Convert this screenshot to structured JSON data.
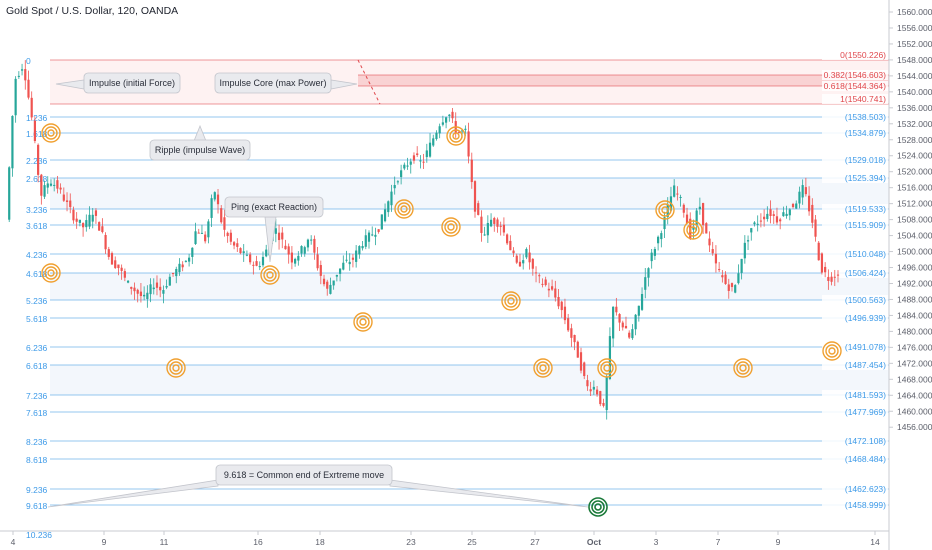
{
  "header": {
    "title": "Gold Spot / U.S. Dollar, 120, OANDA"
  },
  "price_axis": {
    "ticks": [
      "1560.000",
      "1556.000",
      "1552.000",
      "1548.000",
      "1544.000",
      "1540.000",
      "1536.000",
      "1532.000",
      "1528.000",
      "1524.000",
      "1520.000",
      "1516.000",
      "1512.000",
      "1508.000",
      "1504.000",
      "1500.000",
      "1496.000",
      "1492.000",
      "1488.000",
      "1484.000",
      "1480.000",
      "1476.000",
      "1472.000",
      "1468.000",
      "1464.000",
      "1460.000",
      "1456.000"
    ]
  },
  "date_axis": {
    "ticks": [
      "4",
      "9",
      "11",
      "16",
      "18",
      "23",
      "25",
      "27",
      "Oct",
      "3",
      "7",
      "9",
      "14"
    ]
  },
  "fib_levels": [
    {
      "left": "0",
      "right": "0(1550.226)",
      "red": true
    },
    {
      "left": "",
      "right": "0.382(1546.603)",
      "red": true
    },
    {
      "left": "",
      "right": "0.618(1544.364)",
      "red": true
    },
    {
      "left": "",
      "right": "1(1540.741)",
      "red": true
    },
    {
      "left": "1.236",
      "right": "(1538.503)",
      "red": false
    },
    {
      "left": "1.618",
      "right": "(1534.879)",
      "red": false
    },
    {
      "left": "2.236",
      "right": "(1529.018)",
      "red": false
    },
    {
      "left": "2.618",
      "right": "(1525.394)",
      "red": false
    },
    {
      "left": "3.236",
      "right": "(1519.533)",
      "red": false
    },
    {
      "left": "3.618",
      "right": "(1515.909)",
      "red": false
    },
    {
      "left": "4.236",
      "right": "(1510.048)",
      "red": false
    },
    {
      "left": "4.618",
      "right": "(1506.424)",
      "red": false
    },
    {
      "left": "5.236",
      "right": "(1500.563)",
      "red": false
    },
    {
      "left": "5.618",
      "right": "(1496.939)",
      "red": false
    },
    {
      "left": "6.236",
      "right": "(1491.078)",
      "red": false
    },
    {
      "left": "6.618",
      "right": "(1487.454)",
      "red": false
    },
    {
      "left": "7.236",
      "right": "(1481.593)",
      "red": false
    },
    {
      "left": "7.618",
      "right": "(1477.969)",
      "red": false
    },
    {
      "left": "8.236",
      "right": "(1472.108)",
      "red": false
    },
    {
      "left": "8.618",
      "right": "(1468.484)",
      "red": false
    },
    {
      "left": "9.236",
      "right": "(1462.623)",
      "red": false
    },
    {
      "left": "9.618",
      "right": "(1458.999)",
      "red": false
    },
    {
      "left": "10.236",
      "right": "",
      "red": false
    }
  ],
  "callouts": {
    "impulse": "Impulse (initial Force)",
    "impulse_core": "Impulse Core (max Power)",
    "ripple": "Ripple (impulse Wave)",
    "ping": "Ping (exact Reaction)",
    "extreme": "9.618 = Common end of Exrtreme move"
  },
  "colors": {
    "up": "#26a69a",
    "down": "#ef5350",
    "fib_line": "#5aa9e6",
    "fib_red": "#e0474c",
    "ring": "#f0a030",
    "ring_final": "#1b7a3a"
  },
  "chart_data": {
    "type": "candlestick",
    "title": "Gold Spot / U.S. Dollar, 120, OANDA",
    "ylim": [
      1455,
      1561
    ],
    "x_ticks": [
      "4",
      "9",
      "11",
      "16",
      "18",
      "23",
      "25",
      "27",
      "Oct",
      "3",
      "7",
      "9",
      "14"
    ],
    "close_path": [
      1508,
      1543,
      1547,
      1533,
      1514,
      1518,
      1516,
      1512,
      1508,
      1506,
      1510,
      1505,
      1498,
      1496,
      1492,
      1490,
      1488,
      1492,
      1490,
      1494,
      1496,
      1498,
      1506,
      1503,
      1516,
      1506,
      1502,
      1500,
      1498,
      1496,
      1500,
      1506,
      1502,
      1498,
      1500,
      1504,
      1496,
      1490,
      1494,
      1497,
      1498,
      1502,
      1504,
      1506,
      1512,
      1518,
      1521,
      1524,
      1522,
      1527,
      1532,
      1535,
      1530,
      1530,
      1512,
      1504,
      1508,
      1507,
      1502,
      1496,
      1500,
      1494,
      1492,
      1490,
      1486,
      1480,
      1474,
      1466,
      1466,
      1460,
      1486,
      1482,
      1478,
      1486,
      1496,
      1502,
      1508,
      1516,
      1512,
      1504,
      1512,
      1502,
      1496,
      1492,
      1490,
      1500,
      1506,
      1508,
      1510,
      1508,
      1510,
      1512,
      1516,
      1508,
      1496,
      1493,
      1495
    ]
  }
}
